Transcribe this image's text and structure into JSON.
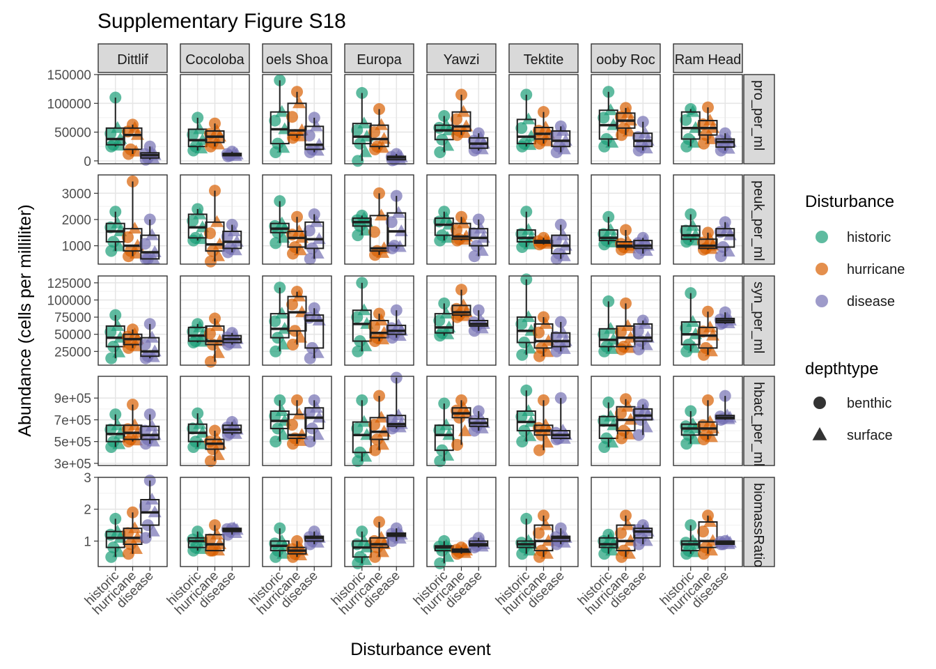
{
  "chart_data": {
    "type": "boxplot",
    "title": "Supplementary Figure S18",
    "xlabel": "Disturbance event",
    "ylabel": "Abundance (cells per milliliter)",
    "categories": [
      "historic",
      "hurricane",
      "disease"
    ],
    "sites": [
      "Dittlif",
      "Cocoloba",
      "Joels Shoal",
      "Europa",
      "Yawzi",
      "Tektite",
      "Booby Rock",
      "Ram Head"
    ],
    "site_labels": [
      "Dittlif",
      "Cocoloba",
      "oels Shoa",
      "Europa",
      "Yawzi",
      "Tektite",
      "ooby Roc",
      "Ram Head"
    ],
    "colors": {
      "historic": "#1b9e77",
      "hurricane": "#d95f02",
      "disease": "#7570b3"
    },
    "legends": {
      "color": {
        "title": "Disturbance",
        "items": [
          "historic",
          "hurricane",
          "disease"
        ]
      },
      "shape": {
        "title": "depthtype",
        "items": [
          "benthic",
          "surface"
        ]
      }
    },
    "grid": true,
    "legend_position": "right",
    "rows": [
      {
        "label": "pro_per_ml",
        "ylim": [
          -5000,
          150000
        ],
        "ticks": [
          0,
          50000,
          100000,
          150000
        ],
        "tick_labels": [
          "0",
          "50000",
          "100000",
          "150000"
        ],
        "boxes": [
          [
            [
              25000,
              28000,
              38000,
              57000,
              110000
            ],
            [
              12000,
              20000,
              45000,
              57000,
              63000
            ],
            [
              2000,
              5000,
              10000,
              14000,
              25000
            ]
          ],
          [
            [
              18000,
              25000,
              36000,
              55000,
              75000
            ],
            [
              25000,
              32000,
              42000,
              52000,
              65000
            ],
            [
              8000,
              9000,
              11000,
              13000,
              16000
            ]
          ],
          [
            [
              15000,
              30000,
              55000,
              85000,
              140000
            ],
            [
              40000,
              45000,
              53000,
              100000,
              120000
            ],
            [
              15000,
              20000,
              28000,
              60000,
              75000
            ]
          ],
          [
            [
              0,
              30000,
              42000,
              65000,
              118000
            ],
            [
              20000,
              25000,
              38000,
              62000,
              90000
            ],
            [
              1000,
              2000,
              6000,
              8000,
              12000
            ]
          ],
          [
            [
              15000,
              37000,
              53000,
              62000,
              78000
            ],
            [
              45000,
              52000,
              60000,
              85000,
              115000
            ],
            [
              18000,
              22000,
              30000,
              40000,
              48000
            ]
          ],
          [
            [
              25000,
              30000,
              42000,
              72000,
              115000
            ],
            [
              30000,
              38000,
              47000,
              58000,
              85000
            ],
            [
              15000,
              25000,
              35000,
              52000,
              60000
            ]
          ],
          [
            [
              25000,
              38000,
              62000,
              88000,
              120000
            ],
            [
              45000,
              57000,
              70000,
              83000,
              92000
            ],
            [
              18000,
              25000,
              35000,
              48000,
              68000
            ]
          ],
          [
            [
              25000,
              38000,
              57000,
              85000,
              90000
            ],
            [
              30000,
              45000,
              57000,
              70000,
              93000
            ],
            [
              18000,
              24000,
              33000,
              38000,
              48000
            ]
          ]
        ]
      },
      {
        "label": "peuk_per_ml",
        "ylim": [
          300,
          3700
        ],
        "ticks": [
          1000,
          2000,
          3000
        ],
        "tick_labels": [
          "1000",
          "2000",
          "3000"
        ],
        "boxes": [
          [
            [
              800,
              1150,
              1550,
              1850,
              2300
            ],
            [
              600,
              800,
              1000,
              1650,
              3450
            ],
            [
              500,
              500,
              750,
              1400,
              2000
            ]
          ],
          [
            [
              1200,
              1300,
              1700,
              2200,
              2400
            ],
            [
              400,
              800,
              1050,
              1900,
              3100
            ],
            [
              750,
              900,
              1150,
              1550,
              1800
            ]
          ],
          [
            [
              1100,
              1500,
              1650,
              1850,
              2700
            ],
            [
              700,
              950,
              1300,
              1550,
              2100
            ],
            [
              500,
              900,
              1250,
              1900,
              2200
            ]
          ],
          [
            [
              1400,
              1750,
              1900,
              2050,
              2150
            ],
            [
              650,
              800,
              900,
              2150,
              3000
            ],
            [
              900,
              1000,
              1550,
              2250,
              2900
            ]
          ],
          [
            [
              1200,
              1400,
              1800,
              2050,
              2300
            ],
            [
              1200,
              1250,
              1350,
              1850,
              2100
            ],
            [
              600,
              1000,
              1300,
              1650,
              2000
            ]
          ],
          [
            [
              950,
              1150,
              1300,
              1600,
              2300
            ],
            [
              1050,
              1100,
              1150,
              1200,
              1300
            ],
            [
              500,
              700,
              1000,
              1400,
              1800
            ]
          ],
          [
            [
              1050,
              1200,
              1300,
              1600,
              2100
            ],
            [
              850,
              950,
              1000,
              1150,
              1600
            ],
            [
              700,
              900,
              1000,
              1200,
              1300
            ]
          ],
          [
            [
              1150,
              1250,
              1400,
              1750,
              2200
            ],
            [
              850,
              900,
              1000,
              1250,
              1500
            ],
            [
              600,
              950,
              1400,
              1650,
              1900
            ]
          ]
        ]
      },
      {
        "label": "syn_per_ml",
        "ylim": [
          5000,
          135000
        ],
        "ticks": [
          25000,
          50000,
          75000,
          100000,
          125000
        ],
        "tick_labels": [
          "25000",
          "50000",
          "75000",
          "100000",
          "125000"
        ],
        "boxes": [
          [
            [
              15000,
              32000,
              45000,
              62000,
              78000
            ],
            [
              30000,
              35000,
              43000,
              50000,
              57000
            ],
            [
              15000,
              18000,
              25000,
              45000,
              65000
            ]
          ],
          [
            [
              38000,
              40000,
              48000,
              60000,
              65000
            ],
            [
              10000,
              35000,
              40000,
              62000,
              73000
            ],
            [
              35000,
              38000,
              43000,
              48000,
              52000
            ]
          ],
          [
            [
              25000,
              45000,
              58000,
              80000,
              118000
            ],
            [
              35000,
              55000,
              82000,
              105000,
              112000
            ],
            [
              15000,
              30000,
              70000,
              78000,
              88000
            ]
          ],
          [
            [
              25000,
              40000,
              65000,
              85000,
              125000
            ],
            [
              40000,
              45000,
              52000,
              70000,
              80000
            ],
            [
              45000,
              50000,
              55000,
              63000,
              85000
            ]
          ],
          [
            [
              48000,
              52000,
              60000,
              80000,
              95000
            ],
            [
              75000,
              78000,
              82000,
              92000,
              115000
            ],
            [
              55000,
              62000,
              65000,
              70000,
              85000
            ]
          ],
          [
            [
              20000,
              38000,
              55000,
              75000,
              130000
            ],
            [
              18000,
              30000,
              40000,
              65000,
              75000
            ],
            [
              25000,
              32000,
              40000,
              52000,
              68000
            ]
          ],
          [
            [
              25000,
              32000,
              42000,
              58000,
              98000
            ],
            [
              28000,
              32000,
              45000,
              62000,
              95000
            ],
            [
              28000,
              40000,
              45000,
              65000,
              70000
            ]
          ],
          [
            [
              25000,
              35000,
              50000,
              68000,
              110000
            ],
            [
              20000,
              30000,
              48000,
              60000,
              83000
            ],
            [
              65000,
              67000,
              70000,
              73000,
              82000
            ]
          ]
        ]
      },
      {
        "label": "hbact_per_ml",
        "ylim": [
          280000,
          1100000
        ],
        "ticks": [
          300000,
          500000,
          700000,
          900000
        ],
        "tick_labels": [
          "3e+05",
          "5e+05",
          "7e+05",
          "9e+05"
        ],
        "boxes": [
          [
            [
              450000,
              500000,
              570000,
              650000,
              750000
            ],
            [
              500000,
              520000,
              580000,
              650000,
              840000
            ],
            [
              480000,
              520000,
              560000,
              640000,
              750000
            ]
          ],
          [
            [
              450000,
              500000,
              580000,
              660000,
              760000
            ],
            [
              320000,
              430000,
              480000,
              520000,
              600000
            ],
            [
              560000,
              580000,
              610000,
              650000,
              680000
            ]
          ],
          [
            [
              500000,
              620000,
              690000,
              780000,
              880000
            ],
            [
              480000,
              530000,
              560000,
              750000,
              880000
            ],
            [
              500000,
              620000,
              720000,
              810000,
              880000
            ]
          ],
          [
            [
              320000,
              400000,
              560000,
              680000,
              880000
            ],
            [
              420000,
              520000,
              590000,
              720000,
              920000
            ],
            [
              620000,
              640000,
              660000,
              740000,
              1100000
            ]
          ],
          [
            [
              320000,
              420000,
              560000,
              650000,
              850000
            ],
            [
              470000,
              720000,
              760000,
              810000,
              880000
            ],
            [
              600000,
              640000,
              670000,
              710000,
              780000
            ]
          ],
          [
            [
              500000,
              600000,
              680000,
              780000,
              970000
            ],
            [
              420000,
              560000,
              600000,
              650000,
              880000
            ],
            [
              520000,
              530000,
              560000,
              600000,
              900000
            ]
          ],
          [
            [
              450000,
              530000,
              650000,
              730000,
              860000
            ],
            [
              530000,
              600000,
              700000,
              820000,
              890000
            ],
            [
              560000,
              700000,
              740000,
              800000,
              840000
            ]
          ],
          [
            [
              480000,
              560000,
              620000,
              660000,
              780000
            ],
            [
              520000,
              560000,
              620000,
              680000,
              880000
            ],
            [
              700000,
              710000,
              720000,
              740000,
              920000
            ]
          ]
        ]
      },
      {
        "label": "biomassRatio",
        "ylim": [
          0.2,
          3.0
        ],
        "ticks": [
          1,
          2,
          3
        ],
        "tick_labels": [
          "1",
          "2",
          "3"
        ],
        "boxes": [
          [
            [
              0.5,
              0.8,
              1.1,
              1.3,
              1.7
            ],
            [
              0.6,
              0.9,
              1.1,
              1.4,
              1.9
            ],
            [
              1.1,
              1.5,
              1.9,
              2.3,
              2.9
            ]
          ],
          [
            [
              0.7,
              0.8,
              1.0,
              1.1,
              1.3
            ],
            [
              0.7,
              0.7,
              0.9,
              1.2,
              1.5
            ],
            [
              1.2,
              1.3,
              1.35,
              1.4,
              1.4
            ]
          ],
          [
            [
              0.5,
              0.7,
              0.85,
              1.0,
              1.4
            ],
            [
              0.5,
              0.6,
              0.7,
              0.8,
              1.0
            ],
            [
              0.9,
              1.0,
              1.1,
              1.15,
              1.3
            ]
          ],
          [
            [
              0.3,
              0.5,
              0.8,
              1.0,
              1.3
            ],
            [
              0.5,
              0.8,
              0.9,
              1.1,
              1.6
            ],
            [
              1.0,
              1.15,
              1.2,
              1.25,
              1.4
            ]
          ],
          [
            [
              0.3,
              0.7,
              0.8,
              0.85,
              1.0
            ],
            [
              0.6,
              0.65,
              0.7,
              0.75,
              0.8
            ],
            [
              0.8,
              0.85,
              0.9,
              1.0,
              1.1
            ]
          ],
          [
            [
              0.6,
              0.8,
              0.9,
              1.0,
              1.7
            ],
            [
              0.5,
              0.7,
              1.0,
              1.5,
              1.8
            ],
            [
              0.9,
              1.0,
              1.1,
              1.15,
              1.4
            ]
          ],
          [
            [
              0.6,
              0.8,
              0.9,
              1.1,
              1.2
            ],
            [
              0.5,
              0.7,
              1.0,
              1.5,
              1.8
            ],
            [
              0.9,
              1.1,
              1.3,
              1.4,
              1.5
            ]
          ],
          [
            [
              0.6,
              0.7,
              0.9,
              1.0,
              1.5
            ],
            [
              0.6,
              0.8,
              1.0,
              1.6,
              1.8
            ],
            [
              0.9,
              0.9,
              0.95,
              1.0,
              1.0
            ]
          ]
        ]
      }
    ]
  }
}
